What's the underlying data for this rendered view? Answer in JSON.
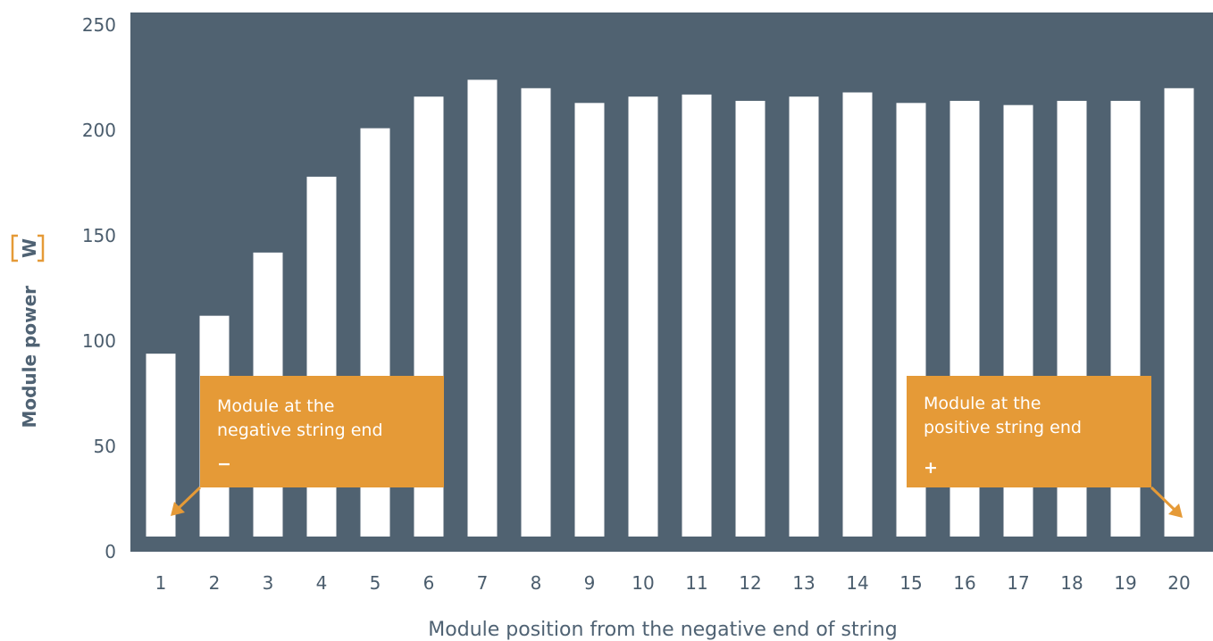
{
  "chart_data": {
    "type": "bar",
    "categories": [
      "1",
      "2",
      "3",
      "4",
      "5",
      "6",
      "7",
      "8",
      "9",
      "10",
      "11",
      "12",
      "13",
      "14",
      "15",
      "16",
      "17",
      "18",
      "19",
      "20"
    ],
    "values": [
      94,
      112,
      142,
      178,
      201,
      216,
      224,
      220,
      213,
      216,
      217,
      214,
      216,
      218,
      213,
      214,
      212,
      214,
      214,
      220
    ],
    "title": "",
    "xlabel": "Module position from the negative end of string",
    "ylabel": "Module power",
    "ylabel_unit": "W",
    "ylim": [
      0,
      250
    ],
    "yticks": [
      0,
      50,
      100,
      150,
      200,
      250
    ],
    "grid": false,
    "legend": "none",
    "annotations": [
      {
        "line1": "Module at the",
        "line2": "negative string end",
        "symbol": "−",
        "points_to": "1"
      },
      {
        "line1": "Module at the",
        "line2": "positive string end",
        "symbol": "+",
        "points_to": "20"
      }
    ]
  },
  "colors": {
    "plot_background": "#506271",
    "bar": "#ffffff",
    "callout": "#e59a37",
    "unit_bracket": "#e59a37",
    "tick_text": "#4b5d6d",
    "axis_title": "#4f6273"
  }
}
